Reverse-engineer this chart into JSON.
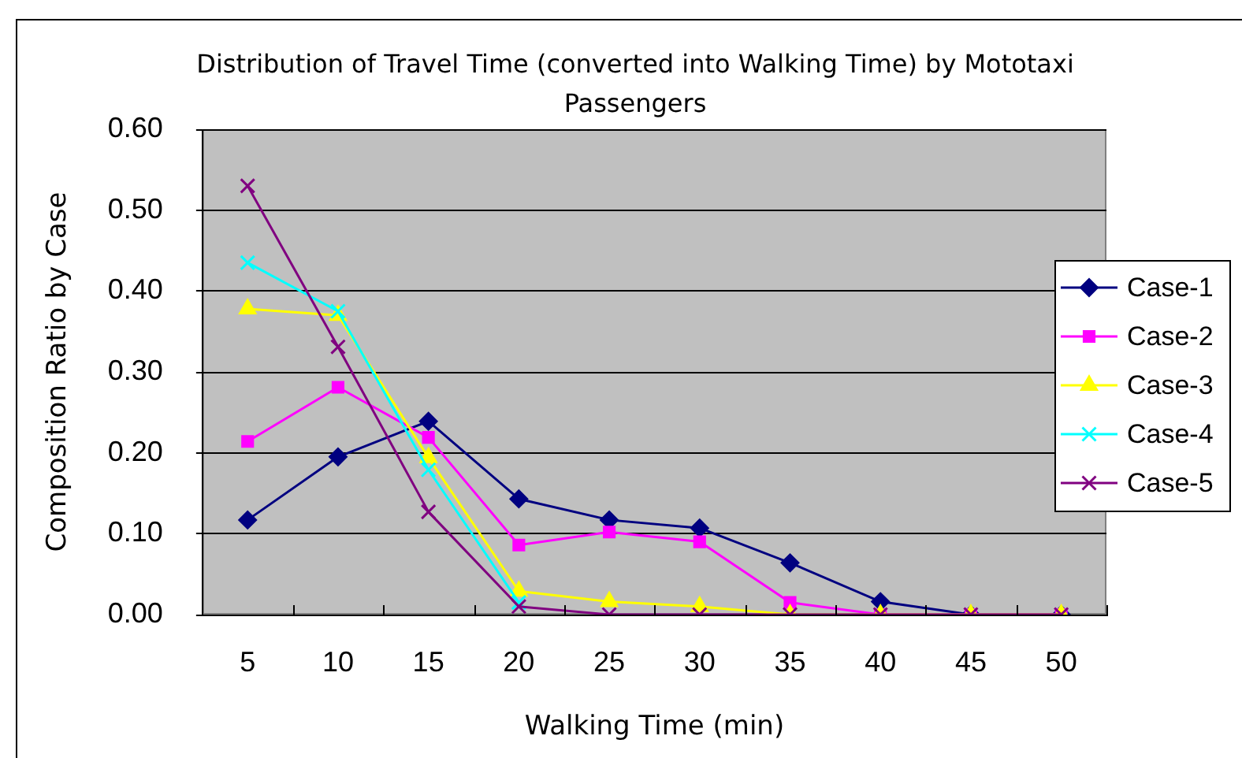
{
  "chart_data": {
    "type": "line",
    "title": "Distribution of Travel Time (converted into Walking Time) by Mototaxi Passengers",
    "xlabel": "Walking Time (min)",
    "ylabel": "Composition Ratio by Case",
    "categories": [
      "5",
      "10",
      "15",
      "20",
      "25",
      "30",
      "35",
      "40",
      "45",
      "50"
    ],
    "series": [
      {
        "name": "Case-1",
        "color": "#000080",
        "marker": "diamond",
        "values": [
          0.117,
          0.195,
          0.239,
          0.143,
          0.117,
          0.107,
          0.064,
          0.016,
          0,
          0
        ]
      },
      {
        "name": "Case-2",
        "color": "#ff00ff",
        "marker": "square",
        "values": [
          0.214,
          0.281,
          0.219,
          0.086,
          0.102,
          0.09,
          0.015,
          0,
          0,
          0
        ]
      },
      {
        "name": "Case-3",
        "color": "#ffff00",
        "marker": "triangle",
        "values": [
          0.378,
          0.37,
          0.194,
          0.029,
          0.016,
          0.01,
          0,
          0,
          0,
          0
        ]
      },
      {
        "name": "Case-4",
        "color": "#00ffff",
        "marker": "cross",
        "values": [
          0.435,
          0.375,
          0.179,
          0.015,
          null,
          null,
          null,
          null,
          null,
          null
        ]
      },
      {
        "name": "Case-5",
        "color": "#800080",
        "marker": "cross",
        "values": [
          0.53,
          0.331,
          0.127,
          0.01,
          0,
          0,
          0,
          0,
          0,
          0
        ]
      }
    ],
    "ylim": [
      0,
      0.6
    ],
    "yticks": [
      {
        "value": 0,
        "label": "0.00"
      },
      {
        "value": 0.1,
        "label": "0.10"
      },
      {
        "value": 0.2,
        "label": "0.20"
      },
      {
        "value": 0.3,
        "label": "0.30"
      },
      {
        "value": 0.4,
        "label": "0.40"
      },
      {
        "value": 0.5,
        "label": "0.50"
      },
      {
        "value": 0.6,
        "label": "0.60"
      }
    ],
    "grid": "y",
    "legend": "right",
    "line_style": "solid"
  }
}
